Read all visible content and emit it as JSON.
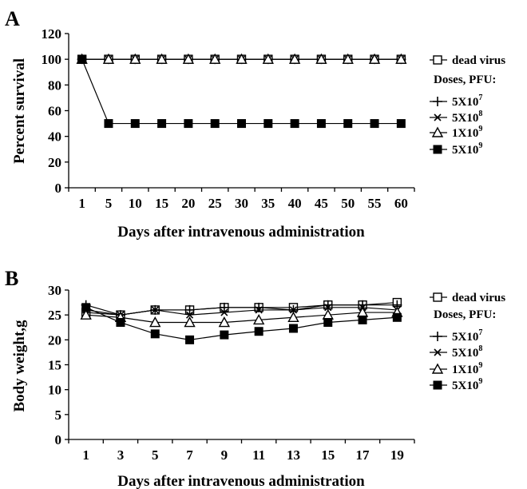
{
  "chart_data": [
    {
      "panel": "A",
      "type": "line",
      "xlabel": "Days after intravenous administration",
      "ylabel": "Percent survival",
      "categories": [
        "1",
        "5",
        "10",
        "15",
        "20",
        "25",
        "30",
        "35",
        "40",
        "45",
        "50",
        "55",
        "60"
      ],
      "ylim": [
        0,
        120
      ],
      "yticks": [
        0,
        20,
        40,
        60,
        80,
        100,
        120
      ],
      "series": [
        {
          "name": "dead virus",
          "marker": "open-square",
          "values": [
            100,
            100,
            100,
            100,
            100,
            100,
            100,
            100,
            100,
            100,
            100,
            100,
            100
          ]
        },
        {
          "name": "5X10^7",
          "marker": "plus",
          "values": [
            100,
            100,
            100,
            100,
            100,
            100,
            100,
            100,
            100,
            100,
            100,
            100,
            100
          ]
        },
        {
          "name": "5X10^8",
          "marker": "cross",
          "values": [
            100,
            100,
            100,
            100,
            100,
            100,
            100,
            100,
            100,
            100,
            100,
            100,
            100
          ]
        },
        {
          "name": "1X10^9",
          "marker": "open-triangle",
          "values": [
            100,
            100,
            100,
            100,
            100,
            100,
            100,
            100,
            100,
            100,
            100,
            100,
            100
          ]
        },
        {
          "name": "5X10^9",
          "marker": "filled-square",
          "values": [
            100,
            50,
            50,
            50,
            50,
            50,
            50,
            50,
            50,
            50,
            50,
            50,
            50
          ]
        }
      ],
      "legend": {
        "header": "Doses, PFU:",
        "entries": [
          {
            "base": "dead virus",
            "exp": ""
          },
          {
            "base": "5X10",
            "exp": "7"
          },
          {
            "base": "5X10",
            "exp": "8"
          },
          {
            "base": "1X10",
            "exp": "9"
          },
          {
            "base": "5X10",
            "exp": "9"
          }
        ]
      }
    },
    {
      "panel": "B",
      "type": "line",
      "xlabel": "Days after intravenous administration",
      "ylabel": "Body weight,g",
      "categories": [
        "1",
        "3",
        "5",
        "7",
        "9",
        "11",
        "13",
        "15",
        "17",
        "19"
      ],
      "ylim": [
        0,
        30
      ],
      "yticks": [
        0,
        5,
        10,
        15,
        20,
        25,
        30
      ],
      "series": [
        {
          "name": "dead virus",
          "marker": "open-square",
          "values": [
            25.5,
            25,
            26,
            26,
            26.5,
            26.5,
            26.5,
            27,
            27,
            27.5
          ]
        },
        {
          "name": "5X10^7",
          "marker": "plus",
          "values": [
            27,
            25,
            26,
            26,
            26.5,
            26.5,
            26,
            27,
            27,
            27
          ]
        },
        {
          "name": "5X10^8",
          "marker": "cross",
          "values": [
            26,
            25,
            26,
            25,
            25.5,
            26,
            26,
            26.5,
            26.5,
            26
          ]
        },
        {
          "name": "1X10^9",
          "marker": "open-triangle",
          "values": [
            25,
            24.5,
            23.5,
            23.5,
            23.5,
            24,
            24.5,
            25,
            25.5,
            25.5
          ]
        },
        {
          "name": "5X10^9",
          "marker": "filled-square",
          "values": [
            26.5,
            23.5,
            21.2,
            20,
            21,
            21.7,
            22.3,
            23.5,
            24,
            24.5
          ]
        }
      ],
      "legend": {
        "header": "Doses, PFU:",
        "entries": [
          {
            "base": "dead virus",
            "exp": ""
          },
          {
            "base": "5X10",
            "exp": "7"
          },
          {
            "base": "5X10",
            "exp": "8"
          },
          {
            "base": "1X10",
            "exp": "9"
          },
          {
            "base": "5X10",
            "exp": "9"
          }
        ]
      }
    }
  ]
}
